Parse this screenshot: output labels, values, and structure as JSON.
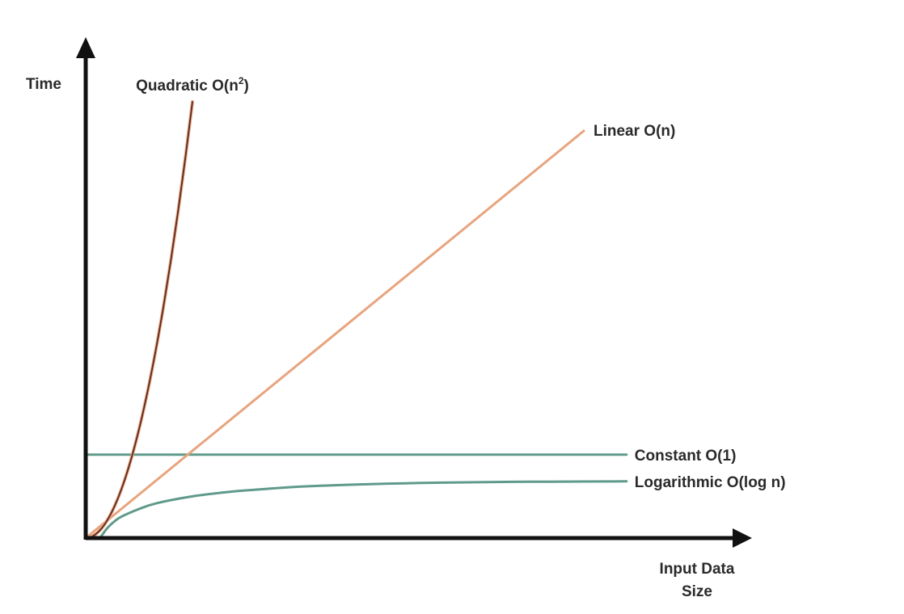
{
  "chart_data": {
    "type": "line",
    "ylabel": "Time",
    "xlabel_lines": [
      "Input Data",
      "Size"
    ],
    "series": [
      {
        "key": "quadratic",
        "name_main": "Quadratic O(n",
        "name_sup": "2",
        "name_close": ")",
        "color": "#5a2a22",
        "color2": "#e8a47e",
        "x": [
          0.06,
          0.2,
          0.4,
          0.6,
          0.8,
          1.0,
          1.2,
          1.4,
          1.6,
          1.8,
          2.0,
          2.2,
          2.4,
          2.6,
          2.8,
          3.0
        ],
        "y": [
          0.0,
          0.2,
          0.8,
          1.8,
          3.2,
          5.0,
          7.2,
          9.8,
          12.8,
          16.2,
          20.0,
          24.2,
          28.8,
          33.8,
          39.2,
          45.0
        ]
      },
      {
        "key": "linear",
        "name": "Linear O(n)",
        "color": "#e8a47e",
        "x": [
          0.0,
          14.0
        ],
        "y": [
          0.0,
          42.0
        ]
      },
      {
        "key": "constant",
        "name": "Constant O(1)",
        "color": "#5f9a8a",
        "x": [
          0.0,
          15.2
        ],
        "y": [
          8.6,
          8.6
        ]
      },
      {
        "key": "logarithmic",
        "name": "Logarithmic O(log n)",
        "color": "#5f9a8a",
        "x": [
          0.4,
          0.6,
          0.8,
          1.0,
          1.5,
          2.0,
          3.0,
          4.0,
          5.0,
          6.0,
          7.0,
          8.0,
          9.0,
          10.0,
          12.0,
          13.0,
          15.2
        ],
        "y": [
          0.0,
          1.0,
          1.7,
          2.2,
          3.0,
          3.6,
          4.3,
          4.75,
          5.05,
          5.3,
          5.45,
          5.57,
          5.65,
          5.72,
          5.8,
          5.82,
          5.85
        ]
      }
    ],
    "xlim": [
      0,
      18
    ],
    "ylim": [
      0,
      50
    ],
    "grid": false,
    "ticks": false
  }
}
